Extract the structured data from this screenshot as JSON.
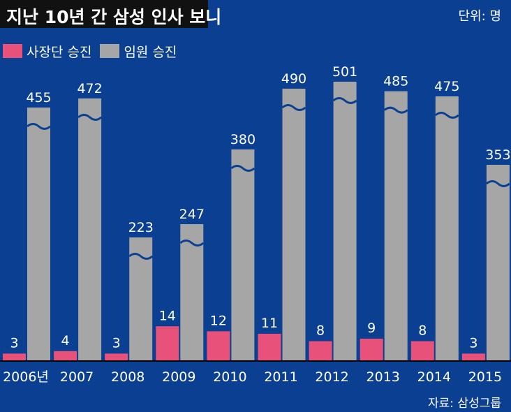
{
  "header": {
    "title": "지난 10년 간 삼성 인사 보니",
    "unit": "단위: 명"
  },
  "legend": [
    {
      "label": "사장단 승진"
    },
    {
      "label": "임원 승진"
    }
  ],
  "source": "자료: 삼성그룹",
  "colors": {
    "background": "#0b3f92",
    "ceo": "#e8527a",
    "exec": "#a6a6a6",
    "title_bg": "#111111",
    "axis_line": "#000000",
    "break_mark": "#0b3f92"
  },
  "chart_data": {
    "type": "bar",
    "categories": [
      "2006년",
      "2007",
      "2008",
      "2009",
      "2010",
      "2011",
      "2012",
      "2013",
      "2014",
      "2015"
    ],
    "series": [
      {
        "name": "사장단 승진",
        "values": [
          3,
          4,
          3,
          14,
          12,
          11,
          8,
          9,
          8,
          3
        ]
      },
      {
        "name": "임원 승진",
        "values": [
          455,
          472,
          223,
          247,
          380,
          490,
          501,
          485,
          475,
          353
        ]
      }
    ],
    "title": "지난 10년 간 삼성 인사 보니",
    "unit": "단위: 명",
    "legend_position": "top-left",
    "axis_break": true,
    "grid": false
  }
}
